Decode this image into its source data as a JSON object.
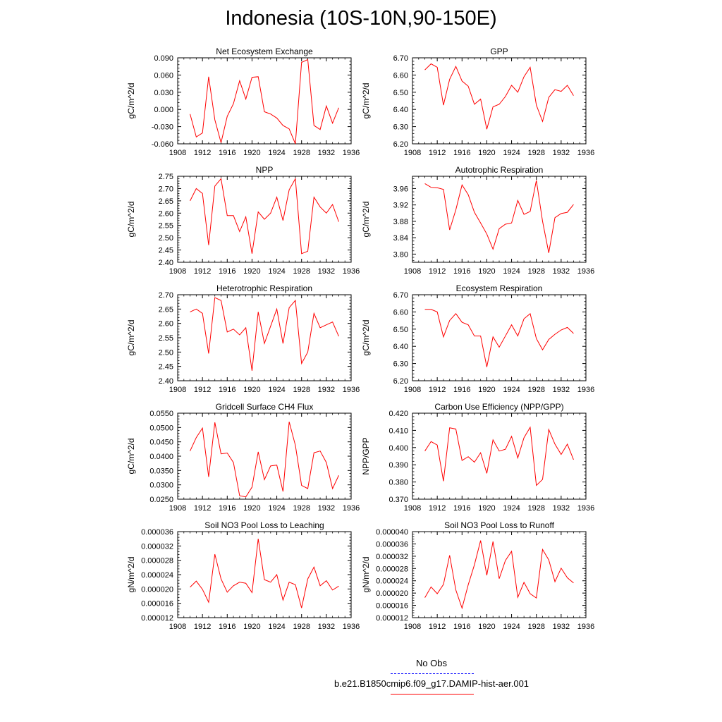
{
  "title": "Indonesia (10S-10N,90-150E)",
  "colors": {
    "model": "#ff0000",
    "obs": "#0000ff",
    "axis": "#000000"
  },
  "legend": {
    "obs_label": "No Obs",
    "model_label": "b.e21.B1850cmip6.f09_g17.DAMIP-hist-aer.001"
  },
  "chart_data": [
    {
      "type": "line",
      "title": "Net Ecosystem Exchange",
      "ylabel": "gC/m^2/d",
      "xlim": [
        1908,
        1936
      ],
      "xticks": [
        1908,
        1912,
        1916,
        1920,
        1924,
        1928,
        1932,
        1936
      ],
      "ylim": [
        -0.06,
        0.09
      ],
      "yticks": [
        "-0.060",
        "-0.030",
        "0.000",
        "0.030",
        "0.060",
        "0.090"
      ],
      "x": [
        1910,
        1911,
        1912,
        1913,
        1914,
        1915,
        1916,
        1917,
        1918,
        1919,
        1920,
        1921,
        1922,
        1923,
        1924,
        1925,
        1926,
        1927,
        1928,
        1929,
        1930,
        1931,
        1932,
        1933,
        1934
      ],
      "series": [
        {
          "values": [
            -0.008,
            -0.048,
            -0.041,
            0.057,
            -0.018,
            -0.058,
            -0.012,
            0.01,
            0.05,
            0.018,
            0.056,
            0.057,
            -0.004,
            -0.008,
            -0.015,
            -0.028,
            -0.034,
            -0.06,
            0.082,
            0.087,
            -0.028,
            -0.035,
            0.006,
            -0.024,
            0.003
          ]
        }
      ]
    },
    {
      "type": "line",
      "title": "GPP",
      "ylabel": "gC/m^2/d",
      "xlim": [
        1908,
        1936
      ],
      "xticks": [
        1908,
        1912,
        1916,
        1920,
        1924,
        1928,
        1932,
        1936
      ],
      "ylim": [
        6.2,
        6.7
      ],
      "yticks": [
        "6.20",
        "6.30",
        "6.40",
        "6.50",
        "6.60",
        "6.70"
      ],
      "x": [
        1910,
        1911,
        1912,
        1913,
        1914,
        1915,
        1916,
        1917,
        1918,
        1919,
        1920,
        1921,
        1922,
        1923,
        1924,
        1925,
        1926,
        1927,
        1928,
        1929,
        1930,
        1931,
        1932,
        1933,
        1934
      ],
      "series": [
        {
          "values": [
            6.63,
            6.665,
            6.645,
            6.425,
            6.575,
            6.65,
            6.565,
            6.535,
            6.43,
            6.46,
            6.285,
            6.415,
            6.43,
            6.475,
            6.54,
            6.5,
            6.59,
            6.645,
            6.425,
            6.33,
            6.47,
            6.515,
            6.505,
            6.54,
            6.48
          ]
        }
      ]
    },
    {
      "type": "line",
      "title": "NPP",
      "ylabel": "gC/m^2/d",
      "xlim": [
        1908,
        1936
      ],
      "xticks": [
        1908,
        1912,
        1916,
        1920,
        1924,
        1928,
        1932,
        1936
      ],
      "ylim": [
        2.4,
        2.75
      ],
      "yticks": [
        "2.40",
        "2.45",
        "2.50",
        "2.55",
        "2.60",
        "2.65",
        "2.70",
        "2.75"
      ],
      "x": [
        1910,
        1911,
        1912,
        1913,
        1914,
        1915,
        1916,
        1917,
        1918,
        1919,
        1920,
        1921,
        1922,
        1923,
        1924,
        1925,
        1926,
        1927,
        1928,
        1929,
        1930,
        1931,
        1932,
        1933,
        1934
      ],
      "series": [
        {
          "values": [
            2.65,
            2.7,
            2.68,
            2.47,
            2.71,
            2.74,
            2.59,
            2.59,
            2.525,
            2.585,
            2.435,
            2.605,
            2.575,
            2.6,
            2.665,
            2.57,
            2.695,
            2.74,
            2.435,
            2.445,
            2.665,
            2.625,
            2.6,
            2.635,
            2.565
          ]
        }
      ]
    },
    {
      "type": "line",
      "title": "Autotrophic Respiration",
      "ylabel": "gC/m^2/d",
      "xlim": [
        1908,
        1936
      ],
      "xticks": [
        1908,
        1912,
        1916,
        1920,
        1924,
        1928,
        1932,
        1936
      ],
      "ylim": [
        3.78,
        3.99
      ],
      "yticks": [
        "3.80",
        "3.84",
        "3.88",
        "3.92",
        "3.96"
      ],
      "x": [
        1910,
        1911,
        1912,
        1913,
        1914,
        1915,
        1916,
        1917,
        1918,
        1919,
        1920,
        1921,
        1922,
        1923,
        1924,
        1925,
        1926,
        1927,
        1928,
        1929,
        1930,
        1931,
        1932,
        1933,
        1934
      ],
      "series": [
        {
          "values": [
            3.972,
            3.963,
            3.962,
            3.958,
            3.859,
            3.908,
            3.969,
            3.945,
            3.902,
            3.876,
            3.849,
            3.812,
            3.862,
            3.873,
            3.876,
            3.931,
            3.897,
            3.904,
            3.98,
            3.88,
            3.803,
            3.889,
            3.899,
            3.902,
            3.921
          ]
        }
      ]
    },
    {
      "type": "line",
      "title": "Heterotrophic Respiration",
      "ylabel": "gC/m^2/d",
      "xlim": [
        1908,
        1936
      ],
      "xticks": [
        1908,
        1912,
        1916,
        1920,
        1924,
        1928,
        1932,
        1936
      ],
      "ylim": [
        2.4,
        2.7
      ],
      "yticks": [
        "2.40",
        "2.45",
        "2.50",
        "2.55",
        "2.60",
        "2.65",
        "2.70"
      ],
      "x": [
        1910,
        1911,
        1912,
        1913,
        1914,
        1915,
        1916,
        1917,
        1918,
        1919,
        1920,
        1921,
        1922,
        1923,
        1924,
        1925,
        1926,
        1927,
        1928,
        1929,
        1930,
        1931,
        1932,
        1933,
        1934
      ],
      "series": [
        {
          "values": [
            2.64,
            2.65,
            2.635,
            2.495,
            2.69,
            2.68,
            2.57,
            2.58,
            2.56,
            2.585,
            2.435,
            2.64,
            2.53,
            2.59,
            2.65,
            2.53,
            2.655,
            2.68,
            2.46,
            2.5,
            2.635,
            2.585,
            2.595,
            2.605,
            2.555
          ]
        }
      ]
    },
    {
      "type": "line",
      "title": "Ecosystem Respiration",
      "ylabel": "gC/m^2/d",
      "xlim": [
        1908,
        1936
      ],
      "xticks": [
        1908,
        1912,
        1916,
        1920,
        1924,
        1928,
        1932,
        1936
      ],
      "ylim": [
        6.2,
        6.7
      ],
      "yticks": [
        "6.20",
        "6.30",
        "6.40",
        "6.50",
        "6.60",
        "6.70"
      ],
      "x": [
        1910,
        1911,
        1912,
        1913,
        1914,
        1915,
        1916,
        1917,
        1918,
        1919,
        1920,
        1921,
        1922,
        1923,
        1924,
        1925,
        1926,
        1927,
        1928,
        1929,
        1930,
        1931,
        1932,
        1933,
        1934
      ],
      "series": [
        {
          "values": [
            6.615,
            6.615,
            6.6,
            6.455,
            6.55,
            6.59,
            6.54,
            6.525,
            6.46,
            6.46,
            6.28,
            6.455,
            6.395,
            6.46,
            6.525,
            6.46,
            6.56,
            6.59,
            6.445,
            6.38,
            6.44,
            6.47,
            6.495,
            6.51,
            6.475
          ]
        }
      ]
    },
    {
      "type": "line",
      "title": "Gridcell Surface CH4 Flux",
      "ylabel": "gC/m^2/d",
      "xlim": [
        1908,
        1936
      ],
      "xticks": [
        1908,
        1912,
        1916,
        1920,
        1924,
        1928,
        1932,
        1936
      ],
      "ylim": [
        0.025,
        0.055
      ],
      "yticks": [
        "0.0250",
        "0.0300",
        "0.0350",
        "0.0400",
        "0.0450",
        "0.0500",
        "0.0550"
      ],
      "x": [
        1910,
        1911,
        1912,
        1913,
        1914,
        1915,
        1916,
        1917,
        1918,
        1919,
        1920,
        1921,
        1922,
        1923,
        1924,
        1925,
        1926,
        1927,
        1928,
        1929,
        1930,
        1931,
        1932,
        1933,
        1934
      ],
      "series": [
        {
          "values": [
            0.0418,
            0.0465,
            0.0498,
            0.0328,
            0.0518,
            0.0408,
            0.0411,
            0.0378,
            0.0262,
            0.0258,
            0.0292,
            0.0415,
            0.0318,
            0.0366,
            0.0369,
            0.0277,
            0.052,
            0.0438,
            0.0298,
            0.0287,
            0.0412,
            0.0418,
            0.0378,
            0.0287,
            0.0333
          ]
        }
      ]
    },
    {
      "type": "line",
      "title": "Carbon Use Efficiency (NPP/GPP)",
      "ylabel": "NPP/GPP",
      "xlim": [
        1908,
        1936
      ],
      "xticks": [
        1908,
        1912,
        1916,
        1920,
        1924,
        1928,
        1932,
        1936
      ],
      "ylim": [
        0.37,
        0.42
      ],
      "yticks": [
        "0.370",
        "0.380",
        "0.390",
        "0.400",
        "0.410",
        "0.420"
      ],
      "x": [
        1910,
        1911,
        1912,
        1913,
        1914,
        1915,
        1916,
        1917,
        1918,
        1919,
        1920,
        1921,
        1922,
        1923,
        1924,
        1925,
        1926,
        1927,
        1928,
        1929,
        1930,
        1931,
        1932,
        1933,
        1934
      ],
      "series": [
        {
          "values": [
            0.398,
            0.4035,
            0.4015,
            0.3805,
            0.4115,
            0.4108,
            0.3925,
            0.3947,
            0.3915,
            0.397,
            0.385,
            0.4045,
            0.398,
            0.399,
            0.4065,
            0.394,
            0.4057,
            0.4118,
            0.378,
            0.3815,
            0.4105,
            0.402,
            0.396,
            0.402,
            0.393
          ]
        }
      ]
    },
    {
      "type": "line",
      "title": "Soil NO3 Pool Loss to Leaching",
      "ylabel": "gN/m^2/d",
      "xlim": [
        1908,
        1936
      ],
      "xticks": [
        1908,
        1912,
        1916,
        1920,
        1924,
        1928,
        1932,
        1936
      ],
      "ylim": [
        1.2e-05,
        3.6e-05
      ],
      "yticks": [
        "0.000012",
        "0.000016",
        "0.000020",
        "0.000024",
        "0.000028",
        "0.000032",
        "0.000036"
      ],
      "x": [
        1910,
        1911,
        1912,
        1913,
        1914,
        1915,
        1916,
        1917,
        1918,
        1919,
        1920,
        1921,
        1922,
        1923,
        1924,
        1925,
        1926,
        1927,
        1928,
        1929,
        1930,
        1931,
        1932,
        1933,
        1934
      ],
      "series": [
        {
          "values": [
            2.05e-05,
            2.22e-05,
            1.99e-05,
            1.63e-05,
            2.97e-05,
            2.28e-05,
            1.91e-05,
            2.09e-05,
            2.19e-05,
            2.16e-05,
            1.9e-05,
            3.4e-05,
            2.26e-05,
            2.19e-05,
            2.4e-05,
            1.69e-05,
            2.19e-05,
            2.12e-05,
            1.47e-05,
            2.28e-05,
            2.61e-05,
            2.09e-05,
            2.23e-05,
            1.97e-05,
            2.08e-05
          ]
        }
      ]
    },
    {
      "type": "line",
      "title": "Soil NO3 Pool Loss to Runoff",
      "ylabel": "gN/m^2/d",
      "xlim": [
        1908,
        1936
      ],
      "xticks": [
        1908,
        1912,
        1916,
        1920,
        1924,
        1928,
        1932,
        1936
      ],
      "ylim": [
        1.2e-05,
        4e-05
      ],
      "yticks": [
        "0.000012",
        "0.000016",
        "0.000020",
        "0.000024",
        "0.000028",
        "0.000032",
        "0.000036",
        "0.000040"
      ],
      "x": [
        1910,
        1911,
        1912,
        1913,
        1914,
        1915,
        1916,
        1917,
        1918,
        1919,
        1920,
        1921,
        1922,
        1923,
        1924,
        1925,
        1926,
        1927,
        1928,
        1929,
        1930,
        1931,
        1932,
        1933,
        1934
      ],
      "series": [
        {
          "values": [
            1.85e-05,
            2.2e-05,
            1.98e-05,
            2.28e-05,
            3.23e-05,
            2.1e-05,
            1.51e-05,
            2.27e-05,
            2.92e-05,
            3.71e-05,
            2.58e-05,
            3.68e-05,
            2.47e-05,
            3.06e-05,
            3.36e-05,
            1.86e-05,
            2.35e-05,
            1.98e-05,
            1.84e-05,
            3.42e-05,
            3.08e-05,
            2.37e-05,
            2.81e-05,
            2.5e-05,
            2.33e-05
          ]
        }
      ]
    }
  ]
}
